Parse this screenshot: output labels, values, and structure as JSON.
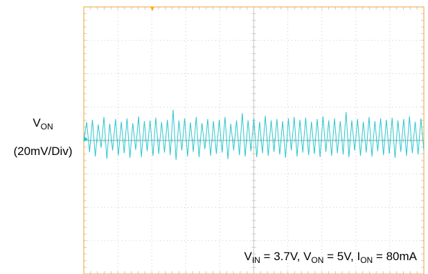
{
  "chart_data": {
    "type": "line",
    "title": "",
    "xlabel": "",
    "ylabel": "",
    "grid": true,
    "divisions": {
      "x": 10,
      "y": 8
    },
    "y_scale_per_div_mV": 20,
    "series": [
      {
        "name": "VON",
        "unit": "mV",
        "color": "#29c6cc",
        "baseline_div": 4,
        "values_div": [
          0.0,
          0.55,
          -0.35,
          0.62,
          -0.48,
          0.48,
          -0.22,
          0.7,
          -0.55,
          0.5,
          -0.3,
          0.64,
          -0.45,
          0.56,
          -0.38,
          0.66,
          -0.52,
          0.52,
          -0.28,
          0.72,
          -0.5,
          0.58,
          -0.32,
          0.6,
          -0.46,
          0.68,
          -0.4,
          0.55,
          -0.36,
          0.62,
          -0.44,
          0.92,
          -0.58,
          0.6,
          -0.3,
          0.66,
          -0.48,
          0.54,
          -0.34,
          0.7,
          -0.5,
          0.52,
          -0.26,
          0.64,
          -0.46,
          0.58,
          -0.4,
          0.62,
          -0.36,
          0.7,
          -0.56,
          0.5,
          -0.3,
          0.6,
          -0.44,
          0.82,
          -0.48,
          0.6,
          -0.32,
          0.66,
          -0.5,
          0.56,
          -0.38,
          0.74,
          -0.46,
          0.6,
          -0.34,
          0.64,
          -0.42,
          0.58,
          -0.52,
          0.66,
          -0.3,
          0.7,
          -0.48,
          0.62,
          -0.36,
          0.68,
          -0.44,
          0.56,
          -0.4,
          0.64,
          -0.5,
          0.72,
          -0.34,
          0.6,
          -0.46,
          0.66,
          -0.38,
          0.58,
          -0.42,
          0.85,
          -0.5,
          0.6,
          -0.3,
          0.64,
          -0.46,
          0.56,
          -0.36,
          0.7,
          -0.48,
          0.58,
          -0.32,
          0.66,
          -0.44,
          0.62,
          -0.4,
          0.68,
          -0.52,
          0.6,
          -0.34,
          0.64,
          -0.46,
          0.72,
          -0.38,
          0.56,
          -0.42,
          0.66,
          -0.3
        ]
      }
    ]
  },
  "labels": {
    "ch_name_main": "V",
    "ch_name_sub": "ON",
    "ch_scale": "(20mV/Div)"
  },
  "conditions": {
    "vin_main": "V",
    "vin_sub": "IN",
    "vin_val": " = 3.7V, ",
    "von_main": "V",
    "von_sub": "ON",
    "von_val": " = 5V, ",
    "ion_main": "I",
    "ion_sub": "ON",
    "ion_val": " = 80mA"
  },
  "colors": {
    "frame": "#f0a330",
    "grid": "#c9c9c9",
    "baseline": "#6ab0b2",
    "marker": "#ffb000"
  }
}
